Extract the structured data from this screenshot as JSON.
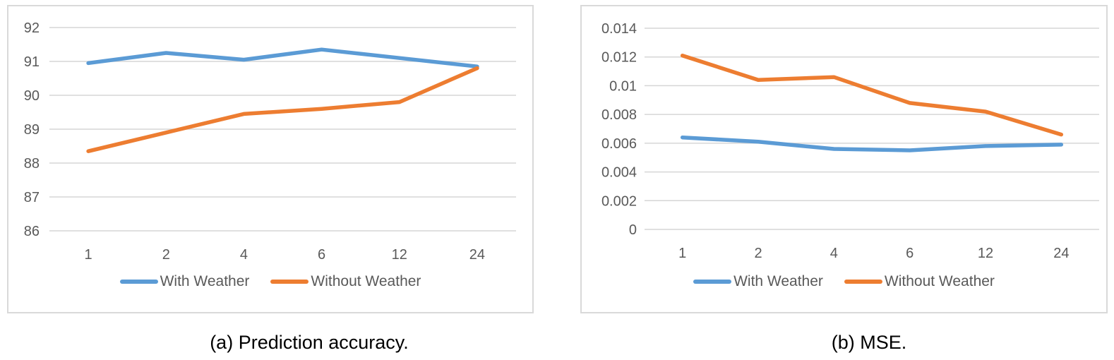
{
  "colors": {
    "with_weather": "#5B9BD5",
    "without_weather": "#ED7D31",
    "gridline": "#D6D6D6",
    "axis_text": "#595959",
    "panel_border": "#D9D9D9",
    "caption_text": "#000000"
  },
  "chart_data": [
    {
      "type": "line",
      "caption": "(a) Prediction accuracy.",
      "categories": [
        "1",
        "2",
        "4",
        "6",
        "12",
        "24"
      ],
      "series": [
        {
          "name": "With Weather",
          "color": "#5B9BD5",
          "values": [
            90.95,
            91.25,
            91.05,
            91.35,
            91.1,
            90.85
          ]
        },
        {
          "name": "Without Weather",
          "color": "#ED7D31",
          "values": [
            88.35,
            88.9,
            89.45,
            89.6,
            89.8,
            90.8
          ]
        }
      ],
      "xlabel": "",
      "ylabel": "",
      "ylim": [
        86,
        92
      ],
      "ytick_step": 1,
      "ytick_labels": [
        "92",
        "91",
        "90",
        "89",
        "88",
        "87",
        "86"
      ],
      "grid": true,
      "legend_position": "bottom"
    },
    {
      "type": "line",
      "caption": "(b) MSE.",
      "categories": [
        "1",
        "2",
        "4",
        "6",
        "12",
        "24"
      ],
      "series": [
        {
          "name": "With Weather",
          "color": "#5B9BD5",
          "values": [
            0.0064,
            0.0061,
            0.0056,
            0.0055,
            0.0058,
            0.0059
          ]
        },
        {
          "name": "Without Weather",
          "color": "#ED7D31",
          "values": [
            0.0121,
            0.0104,
            0.0106,
            0.0088,
            0.0082,
            0.0066
          ]
        }
      ],
      "xlabel": "",
      "ylabel": "",
      "ylim": [
        0,
        0.014
      ],
      "ytick_step": 0.002,
      "ytick_labels": [
        "0.014",
        "0.012",
        "0.01",
        "0.008",
        "0.006",
        "0.004",
        "0.002",
        "0"
      ],
      "grid": true,
      "legend_position": "bottom"
    }
  ]
}
